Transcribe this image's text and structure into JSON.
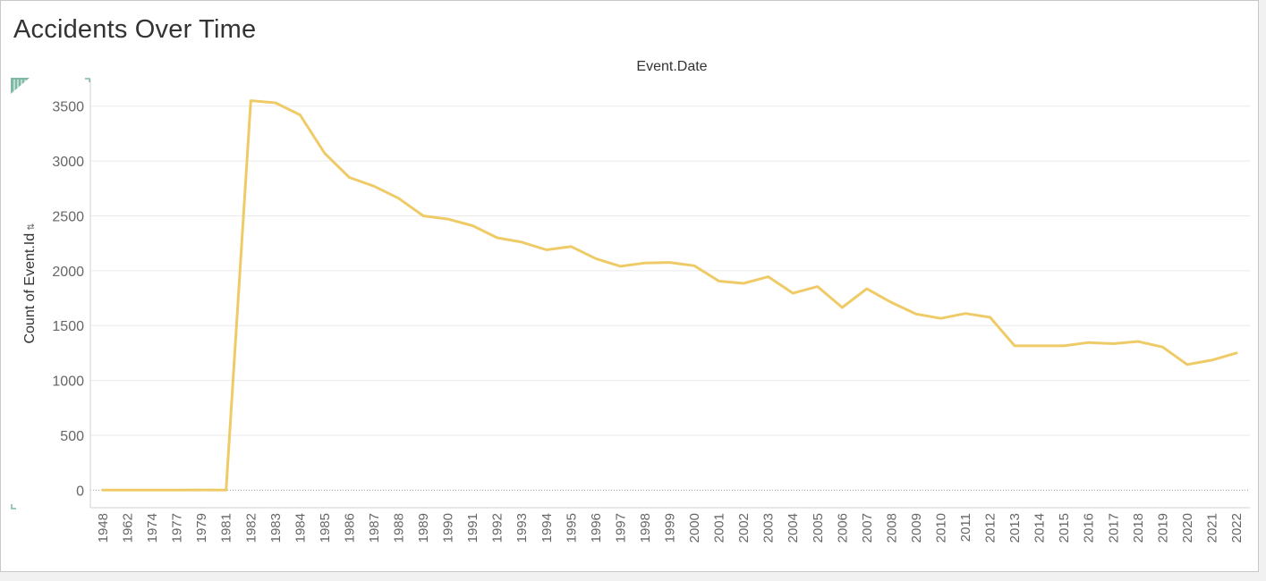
{
  "title": "Accidents Over Time",
  "colors": {
    "line": "#EFCB68",
    "grid": "#EAEAEA",
    "zero": "#9A9A9A",
    "accent": "#7FB8A4"
  },
  "chart_data": {
    "type": "line",
    "title": "Accidents Over Time",
    "column_header": "Event.Date",
    "xlabel": "",
    "ylabel": "Count of Event.Id",
    "ylim": [
      -160,
      3750
    ],
    "yticks": [
      0,
      500,
      1000,
      1500,
      2000,
      2500,
      3000,
      3500
    ],
    "grid": true,
    "legend": "none",
    "categories": [
      "1948",
      "1962",
      "1974",
      "1977",
      "1979",
      "1981",
      "1982",
      "1983",
      "1984",
      "1985",
      "1986",
      "1987",
      "1988",
      "1989",
      "1990",
      "1991",
      "1992",
      "1993",
      "1994",
      "1995",
      "1996",
      "1997",
      "1998",
      "1999",
      "2000",
      "2001",
      "2002",
      "2003",
      "2004",
      "2005",
      "2006",
      "2007",
      "2008",
      "2009",
      "2010",
      "2011",
      "2012",
      "2013",
      "2014",
      "2015",
      "2016",
      "2017",
      "2018",
      "2019",
      "2020",
      "2021",
      "2022"
    ],
    "values": [
      1,
      1,
      1,
      1,
      2,
      1,
      3550,
      3530,
      3420,
      3070,
      2850,
      2770,
      2660,
      2500,
      2470,
      2410,
      2300,
      2260,
      2190,
      2220,
      2110,
      2040,
      2070,
      2075,
      2045,
      1905,
      1885,
      1945,
      1795,
      1855,
      1665,
      1835,
      1710,
      1605,
      1565,
      1610,
      1575,
      1315,
      1315,
      1315,
      1345,
      1335,
      1355,
      1305,
      1145,
      1185,
      1250
    ]
  }
}
